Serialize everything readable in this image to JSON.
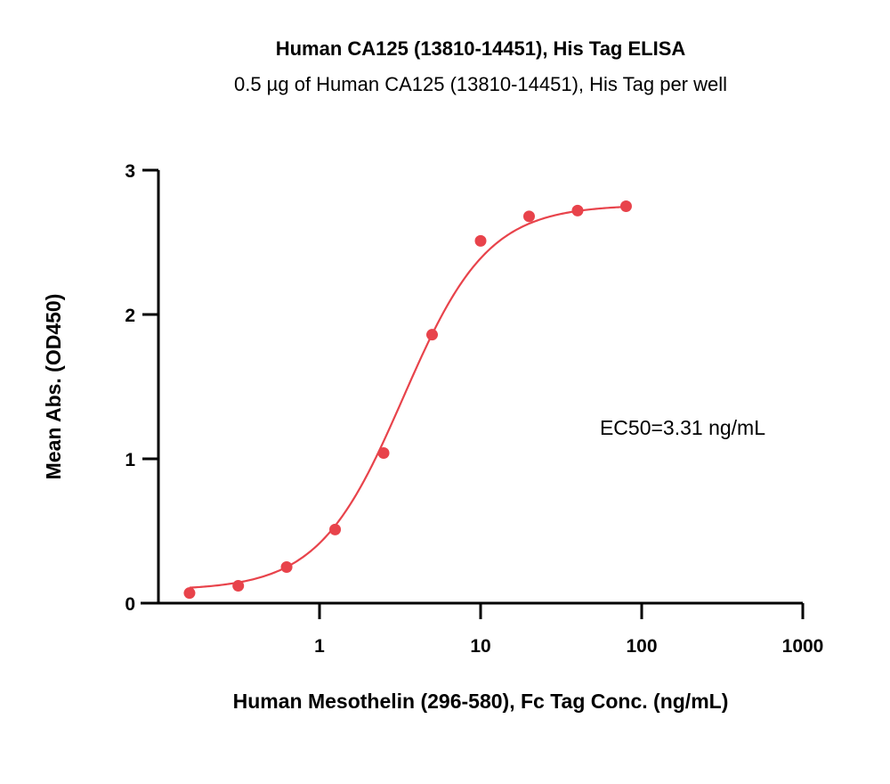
{
  "chart_data": {
    "type": "scatter",
    "title": "Human CA125 (13810-14451), His Tag ELISA",
    "subtitle": "0.5 µg of Human CA125 (13810-14451), His Tag per well",
    "xlabel": "Human Mesothelin (296-580), Fc Tag Conc. (ng/mL)",
    "ylabel": "Mean Abs. (OD450)",
    "x_scale": "log",
    "xlim": [
      0.1,
      1000
    ],
    "ylim": [
      0,
      3
    ],
    "x_ticks": [
      {
        "value": 1,
        "label": "1"
      },
      {
        "value": 10,
        "label": "10"
      },
      {
        "value": 100,
        "label": "100"
      },
      {
        "value": 1000,
        "label": "1000"
      }
    ],
    "y_ticks": [
      {
        "value": 0,
        "label": "0"
      },
      {
        "value": 1,
        "label": "1"
      },
      {
        "value": 2,
        "label": "2"
      },
      {
        "value": 3,
        "label": "3"
      }
    ],
    "grid": false,
    "series": [
      {
        "x": [
          0.156,
          0.313,
          0.625,
          1.25,
          2.5,
          5,
          10,
          20,
          40,
          80
        ],
        "y": [
          0.07,
          0.12,
          0.25,
          0.51,
          1.04,
          1.86,
          2.51,
          2.68,
          2.72,
          2.75
        ],
        "color": "#E8434B",
        "fit": {
          "model": "4PL",
          "bottom": 0.09,
          "top": 2.76,
          "ec50": 3.31,
          "hill": 1.65
        }
      }
    ],
    "annotations": [
      "EC50=3.31 ng/mL"
    ]
  }
}
